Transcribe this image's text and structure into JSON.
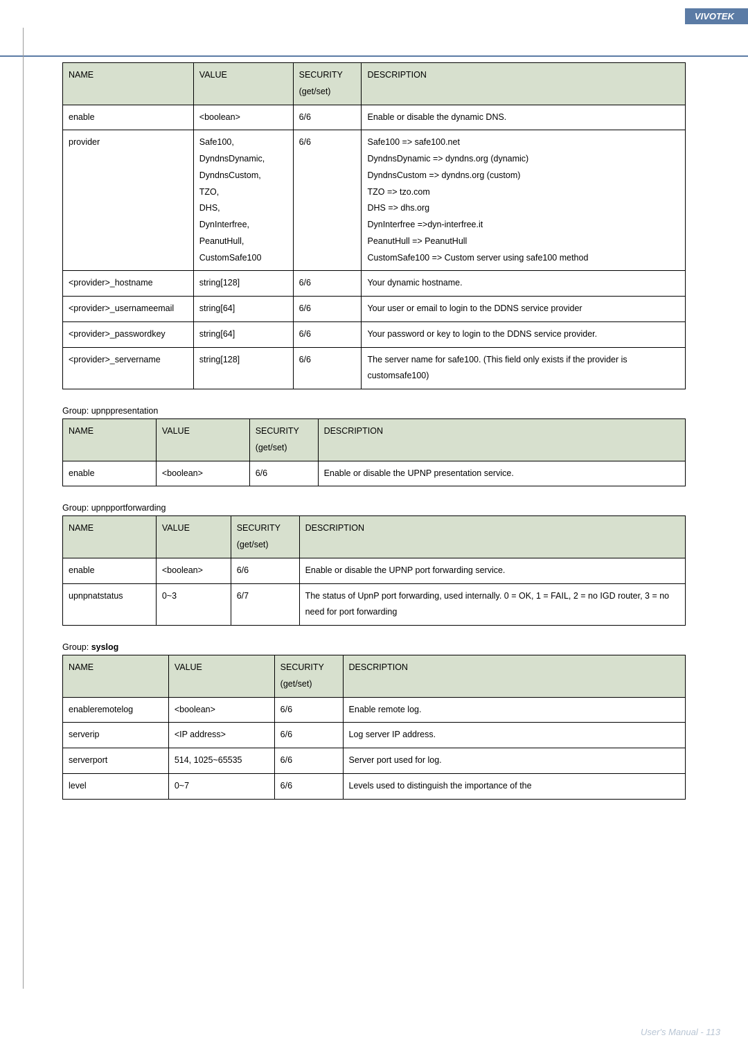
{
  "brand": "VIVOTEK",
  "footer": "User's Manual - 113",
  "colors": {
    "header_bg": "#5b7ba5",
    "th_bg": "#d7e0ce",
    "border": "#000000",
    "footer_text": "#b8c5d4"
  },
  "table1": {
    "headers": {
      "name": "NAME",
      "value": "VALUE",
      "security": "SECURITY\n(get/set)",
      "description": "DESCRIPTION"
    },
    "rows": [
      {
        "name": "enable",
        "value": "<boolean>",
        "security": "6/6",
        "description": "Enable or disable the dynamic DNS."
      },
      {
        "name": "provider",
        "value": "Safe100,\nDyndnsDynamic,\nDyndnsCustom,\nTZO,\nDHS,\nDynInterfree,\nPeanutHull,\nCustomSafe100",
        "security": "6/6",
        "description": "Safe100 => safe100.net\nDyndnsDynamic => dyndns.org (dynamic)\nDyndnsCustom => dyndns.org (custom)\nTZO => tzo.com\nDHS => dhs.org\nDynInterfree =>dyn-interfree.it\nPeanutHull => PeanutHull\nCustomSafe100 => Custom server using safe100 method"
      },
      {
        "name": "<provider>_hostname",
        "value": "string[128]",
        "security": "6/6",
        "description": "Your dynamic hostname."
      },
      {
        "name": "<provider>_usernameemail",
        "value": "string[64]",
        "security": "6/6",
        "description": "Your user or email to login to the DDNS service provider"
      },
      {
        "name": "<provider>_passwordkey",
        "value": "string[64]",
        "security": "6/6",
        "description": "Your password or key to login to the DDNS service provider."
      },
      {
        "name": "<provider>_servername",
        "value": "string[128]",
        "security": "6/6",
        "description": "The server name for safe100. (This field only exists if the provider is customsafe100)"
      }
    ],
    "col_widths": [
      "21%",
      "16%",
      "11%",
      "52%"
    ]
  },
  "group2": {
    "prefix": "Group: ",
    "name": "upnppresentation"
  },
  "table2": {
    "headers": {
      "name": "NAME",
      "value": "VALUE",
      "security": "SECURITY\n(get/set)",
      "description": "DESCRIPTION"
    },
    "rows": [
      {
        "name": "enable",
        "value": "<boolean>",
        "security": "6/6",
        "description": "Enable or disable the UPNP presentation service."
      }
    ],
    "col_widths": [
      "15%",
      "15%",
      "11%",
      "59%"
    ]
  },
  "group3": {
    "prefix": "Group: ",
    "name": "upnpportforwarding"
  },
  "table3": {
    "headers": {
      "name": "NAME",
      "value": "VALUE",
      "security": "SECURITY\n(get/set)",
      "description": "DESCRIPTION"
    },
    "rows": [
      {
        "name": "enable",
        "value": "<boolean>",
        "security": "6/6",
        "description": "Enable or disable the UPNP port forwarding service."
      },
      {
        "name": "upnpnatstatus",
        "value": "0~3",
        "security": "6/7",
        "description": "The status of UpnP port forwarding, used internally. 0 = OK, 1 = FAIL, 2 = no IGD router, 3 = no need for port forwarding"
      }
    ],
    "col_widths": [
      "15%",
      "12%",
      "11%",
      "62%"
    ]
  },
  "group4": {
    "prefix": "Group: ",
    "name": "syslog",
    "bold": true
  },
  "table4": {
    "headers": {
      "name": "NAME",
      "value": "VALUE",
      "security": "SECURITY\n(get/set)",
      "description": "DESCRIPTION"
    },
    "rows": [
      {
        "name": "enableremotelog",
        "value": "<boolean>",
        "security": "6/6",
        "description": "Enable remote log."
      },
      {
        "name": "serverip",
        "value": "<IP address>",
        "security": "6/6",
        "description": "Log server IP address."
      },
      {
        "name": "serverport",
        "value": "514, 1025~65535",
        "security": "6/6",
        "description": "Server port used for log."
      },
      {
        "name": "level",
        "value": "0~7",
        "security": "6/6",
        "description": "Levels used to distinguish the importance of the"
      }
    ],
    "col_widths": [
      "17%",
      "17%",
      "11%",
      "55%"
    ]
  }
}
